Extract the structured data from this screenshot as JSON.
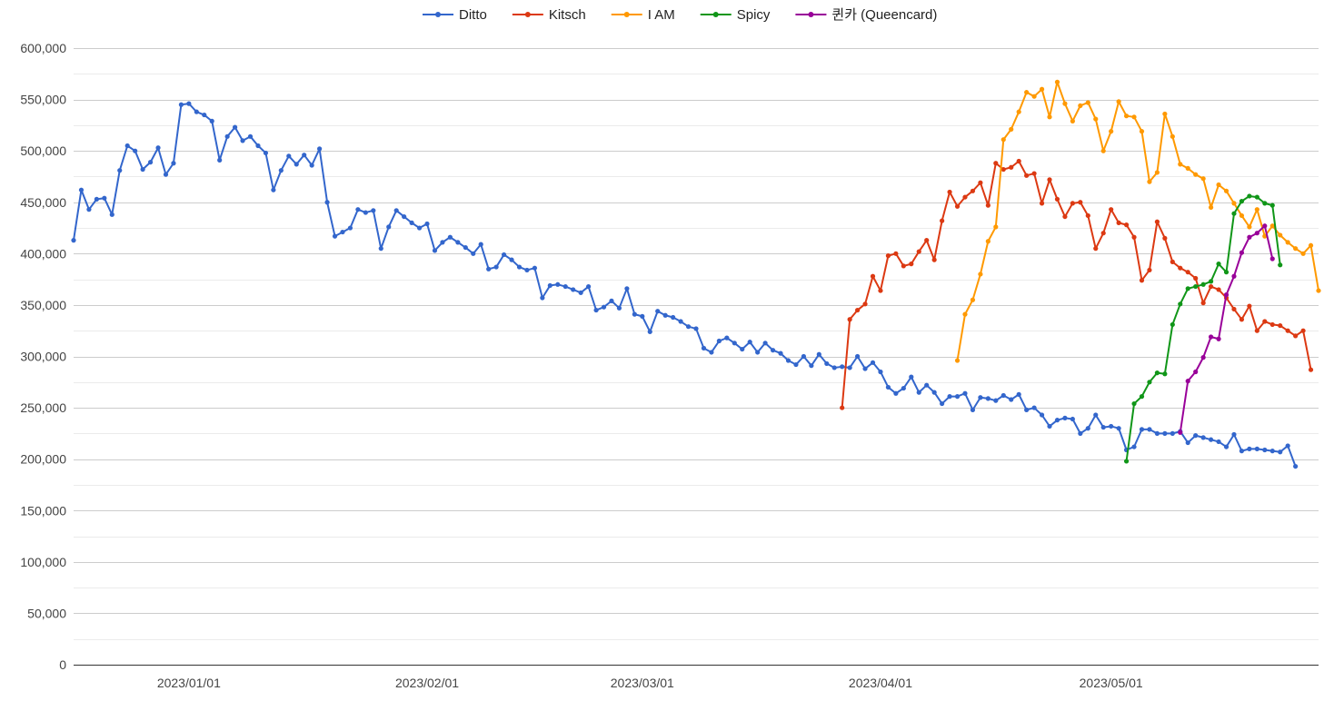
{
  "chart_data": {
    "type": "line",
    "x_start": "2022-12-17",
    "x_step_days": 1,
    "xlim": [
      "2022-12-17",
      "2023-05-28"
    ],
    "ylim": [
      0,
      600000
    ],
    "y_ticks": [
      0,
      50000,
      100000,
      150000,
      200000,
      250000,
      300000,
      350000,
      400000,
      450000,
      500000,
      550000,
      600000
    ],
    "y_tick_labels": [
      "0",
      "50,000",
      "100,000",
      "150,000",
      "200,000",
      "250,000",
      "300,000",
      "350,000",
      "400,000",
      "450,000",
      "500,000",
      "550,000",
      "600,000"
    ],
    "x_ticks": [
      "2023-01-01",
      "2023-02-01",
      "2023-03-01",
      "2023-04-01",
      "2023-05-01"
    ],
    "x_tick_labels": [
      "2023/01/01",
      "2023/02/01",
      "2023/03/01",
      "2023/04/01",
      "2023/05/01"
    ],
    "grid": true,
    "minor_grid": true,
    "legend_position": "top",
    "title": "",
    "xlabel": "",
    "ylabel": "",
    "series": [
      {
        "name": "Ditto",
        "color": "#3366cc",
        "start": "2022-12-17",
        "values": [
          413000,
          462000,
          443000,
          453000,
          454000,
          438000,
          481000,
          505000,
          500000,
          482000,
          489000,
          503000,
          477000,
          488000,
          545000,
          546000,
          538000,
          535000,
          529000,
          491000,
          514000,
          523000,
          510000,
          514000,
          505000,
          498000,
          462000,
          481000,
          495000,
          487000,
          496000,
          486000,
          502000,
          450000,
          417000,
          421000,
          425000,
          443000,
          440000,
          442000,
          405000,
          426000,
          442000,
          436000,
          430000,
          425000,
          429000,
          403000,
          411000,
          416000,
          411000,
          406000,
          400000,
          409000,
          385000,
          387000,
          399000,
          394000,
          387000,
          384000,
          386000,
          357000,
          369000,
          370000,
          368000,
          365000,
          362000,
          368000,
          345000,
          348000,
          354000,
          347000,
          366000,
          341000,
          339000,
          324000,
          344000,
          340000,
          338000,
          334000,
          329000,
          327000,
          308000,
          304000,
          315000,
          318000,
          313000,
          307000,
          314000,
          304000,
          313000,
          306000,
          303000,
          296000,
          292000,
          300000,
          291000,
          302000,
          293000,
          289000,
          290000,
          289000,
          300000,
          288000,
          294000,
          285000,
          270000,
          264000,
          269000,
          280000,
          265000,
          272000,
          265000,
          254000,
          261000,
          261000,
          264000,
          248000,
          260000,
          259000,
          257000,
          262000,
          258000,
          263000,
          248000,
          250000,
          243000,
          232000,
          238000,
          240000,
          239000,
          225000,
          230000,
          243000,
          231000,
          232000,
          230000,
          209000,
          212000,
          229000,
          229000,
          225000,
          225000,
          225000,
          227000,
          216000,
          223000,
          221000,
          219000,
          217000,
          212000,
          224000,
          208000,
          210000,
          210000,
          209000,
          208000,
          207000,
          213000,
          193000
        ]
      },
      {
        "name": "Kitsch",
        "color": "#dc3912",
        "start": "2023-03-27",
        "values": [
          250000,
          336000,
          345000,
          351000,
          378000,
          364000,
          398000,
          400000,
          388000,
          390000,
          402000,
          413000,
          394000,
          432000,
          460000,
          446000,
          455000,
          461000,
          469000,
          447000,
          488000,
          482000,
          484000,
          490000,
          476000,
          478000,
          449000,
          472000,
          453000,
          436000,
          449000,
          450000,
          437000,
          405000,
          420000,
          443000,
          430000,
          428000,
          416000,
          374000,
          384000,
          431000,
          415000,
          392000,
          386000,
          382000,
          376000,
          352000,
          368000,
          365000,
          357000,
          346000,
          336000,
          349000,
          325000,
          334000,
          331000,
          330000,
          325000,
          320000,
          325000,
          287000
        ]
      },
      {
        "name": "I AM",
        "color": "#ff9900",
        "start": "2023-04-11",
        "values": [
          296000,
          341000,
          355000,
          380000,
          412000,
          426000,
          511000,
          521000,
          538000,
          557000,
          553000,
          560000,
          533000,
          567000,
          546000,
          529000,
          544000,
          547000,
          531000,
          500000,
          519000,
          548000,
          534000,
          533000,
          519000,
          470000,
          479000,
          536000,
          514000,
          487000,
          483000,
          477000,
          473000,
          445000,
          467000,
          461000,
          449000,
          437000,
          426000,
          443000,
          417000,
          427000,
          418000,
          411000,
          405000,
          400000,
          408000,
          364000
        ]
      },
      {
        "name": "Spicy",
        "color": "#109618",
        "start": "2023-05-03",
        "values": [
          198000,
          254000,
          261000,
          275000,
          284000,
          283000,
          331000,
          351000,
          366000,
          368000,
          370000,
          373000,
          390000,
          382000,
          439000,
          451000,
          456000,
          455000,
          449000,
          447000,
          389000
        ]
      },
      {
        "name": "퀸카 (Queencard)",
        "color": "#990099",
        "start": "2023-05-10",
        "values": [
          226000,
          276000,
          285000,
          299000,
          319000,
          317000,
          360000,
          378000,
          401000,
          416000,
          420000,
          427000,
          395000
        ]
      }
    ]
  }
}
